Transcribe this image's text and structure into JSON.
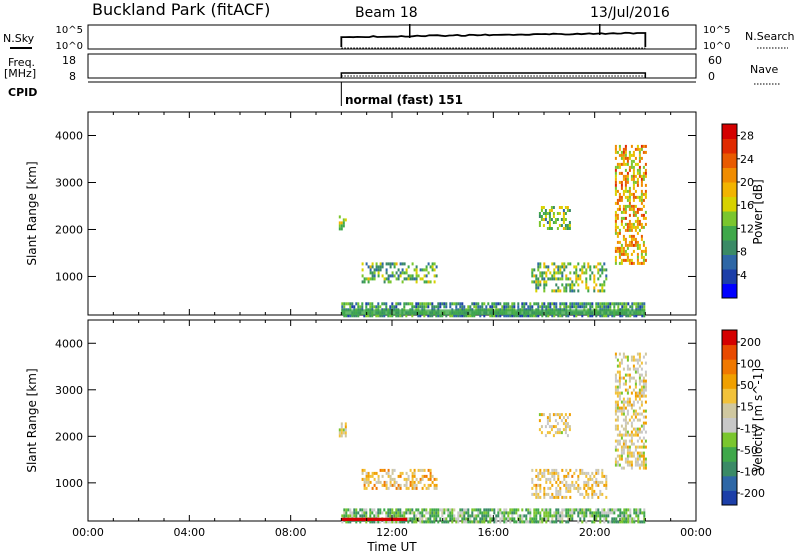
{
  "header": {
    "station": "Buckland Park (fitACF)",
    "beam": "Beam 18",
    "date": "13/Jul/2016"
  },
  "strip_labels": {
    "nsky": "N.Sky",
    "freq_line1": "Freq.",
    "freq_line2": "[MHz]",
    "cpid": "CPID",
    "nsearch": "N.Search",
    "nave": "Nave",
    "noise_tick_top": "10^5",
    "noise_tick_bottom": "10^0",
    "freq_tick_top": "18",
    "freq_tick_bottom": "8",
    "nave_tick_top": "60",
    "nave_tick_bottom": "0",
    "mode_label": "normal (fast) 151"
  },
  "colors": {
    "power_scale": [
      "#0000ff",
      "#1c3fa8",
      "#2e67a6",
      "#3a8a66",
      "#3fa84a",
      "#7ac62e",
      "#d7d200",
      "#f2b400",
      "#f08c00",
      "#e85a00",
      "#e02a00",
      "#d40000"
    ],
    "velocity_scale": [
      "#1c3fa8",
      "#2e67a6",
      "#3a8a66",
      "#3fa84a",
      "#7ac62e",
      "#c8c8c8",
      "#d0c8a0",
      "#f2c23a",
      "#f0a000",
      "#f07800",
      "#e84a00",
      "#d40000"
    ]
  },
  "chart_data": [
    {
      "type": "heatmap",
      "title": "",
      "ylabel": "Slant Range [km]",
      "xlabel": "",
      "ylim": [
        180,
        4500
      ],
      "xlim": [
        0,
        24
      ],
      "yticks": [
        1000,
        2000,
        3000,
        4000
      ],
      "colorbar": {
        "label": "Power [dB]",
        "ticks": [
          "4",
          "8",
          "12",
          "16",
          "20",
          "24",
          "28"
        ],
        "range": [
          0,
          30
        ]
      },
      "echo_regions": [
        {
          "t_start": 10.0,
          "t_end": 22.0,
          "r_start": 180,
          "r_end": 450,
          "level": 0.25
        },
        {
          "t_start": 9.9,
          "t_end": 10.2,
          "r_start": 2000,
          "r_end": 2300,
          "level": 0.45
        },
        {
          "t_start": 10.8,
          "t_end": 13.8,
          "r_start": 900,
          "r_end": 1300,
          "level": 0.35
        },
        {
          "t_start": 17.8,
          "t_end": 19.0,
          "r_start": 2000,
          "r_end": 2500,
          "level": 0.4
        },
        {
          "t_start": 17.5,
          "t_end": 20.5,
          "r_start": 700,
          "r_end": 1300,
          "level": 0.4
        },
        {
          "t_start": 20.8,
          "t_end": 22.0,
          "r_start": 1300,
          "r_end": 3800,
          "level": 0.6
        }
      ]
    },
    {
      "type": "heatmap",
      "title": "",
      "ylabel": "Slant Range [km]",
      "xlabel": "Time UT",
      "ylim": [
        180,
        4500
      ],
      "xlim": [
        0,
        24
      ],
      "yticks": [
        1000,
        2000,
        3000,
        4000
      ],
      "xticks": [
        "00:00",
        "04:00",
        "08:00",
        "12:00",
        "16:00",
        "20:00",
        "00:00"
      ],
      "colorbar": {
        "label": "Velocity [m s^-1]",
        "ticks": [
          "200",
          "100",
          "50",
          "15",
          "-15",
          "-50",
          "-100",
          "-200"
        ],
        "range": [
          -250,
          250
        ]
      },
      "echo_regions": [
        {
          "t_start": 10.0,
          "t_end": 22.0,
          "r_start": 180,
          "r_end": 450,
          "level": 0.3
        },
        {
          "t_start": 9.9,
          "t_end": 10.2,
          "r_start": 2000,
          "r_end": 2300,
          "level": 0.5
        },
        {
          "t_start": 10.8,
          "t_end": 13.8,
          "r_start": 900,
          "r_end": 1300,
          "level": 0.6
        },
        {
          "t_start": 17.8,
          "t_end": 19.0,
          "r_start": 2000,
          "r_end": 2500,
          "level": 0.5
        },
        {
          "t_start": 17.5,
          "t_end": 20.5,
          "r_start": 700,
          "r_end": 1300,
          "level": 0.55
        },
        {
          "t_start": 20.8,
          "t_end": 22.0,
          "r_start": 1300,
          "r_end": 3800,
          "level": 0.5
        }
      ]
    }
  ]
}
